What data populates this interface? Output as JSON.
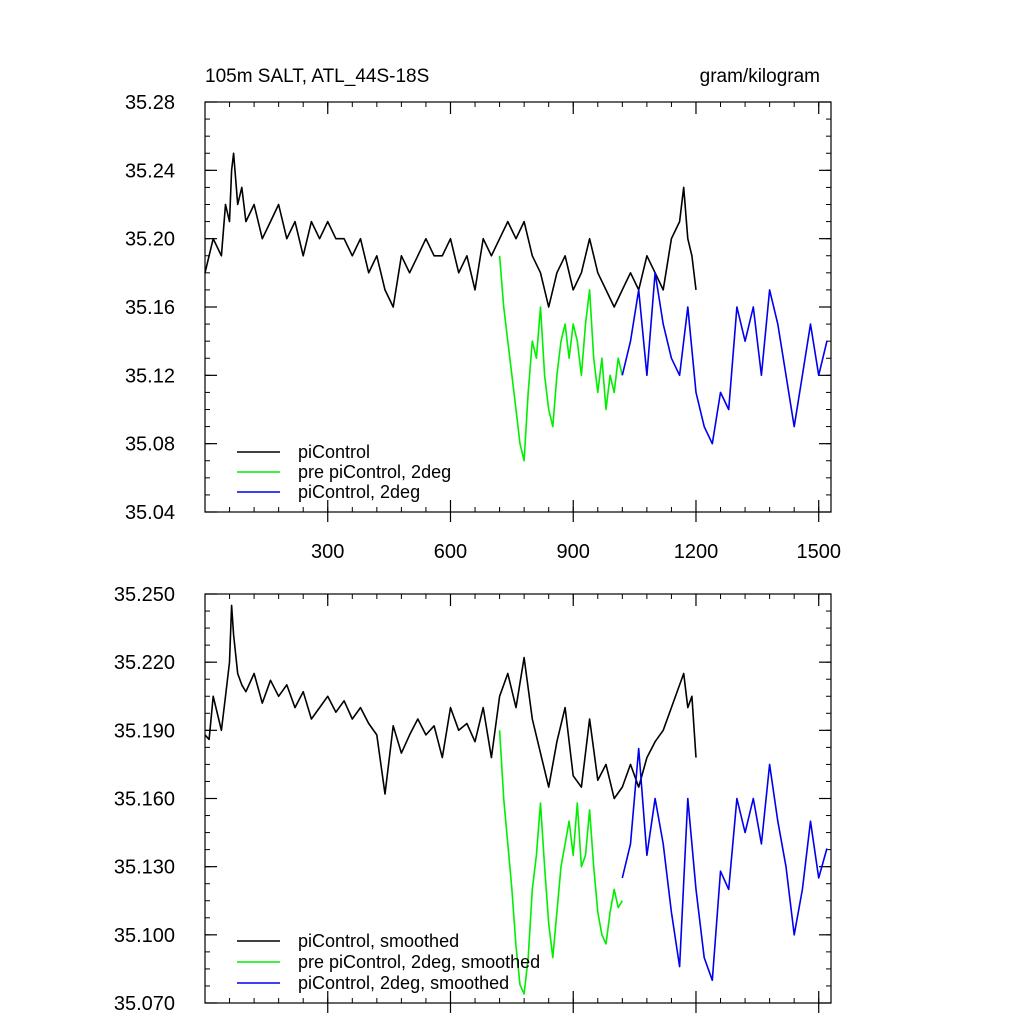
{
  "chart_data": [
    {
      "type": "line",
      "title_left": "105m SALT, ATL_44S-18S",
      "title_right": "gram/kilogram",
      "xlim": [
        0,
        1530
      ],
      "ylim": [
        35.04,
        35.28
      ],
      "xticks": [
        300,
        600,
        900,
        1200,
        1500
      ],
      "xtick_labels": [
        "300",
        "600",
        "900",
        "1200",
        "1500"
      ],
      "yticks": [
        35.04,
        35.08,
        35.12,
        35.16,
        35.2,
        35.24,
        35.28
      ],
      "ytick_labels": [
        "35.04",
        "35.08",
        "35.12",
        "35.16",
        "35.20",
        "35.24",
        "35.28"
      ],
      "legend_position": "bottom-left",
      "series": [
        {
          "name": "piControl",
          "color": "#000000",
          "x": [
            0,
            20,
            40,
            50,
            60,
            65,
            70,
            80,
            90,
            100,
            120,
            140,
            160,
            180,
            200,
            220,
            240,
            260,
            280,
            300,
            320,
            340,
            360,
            380,
            400,
            420,
            440,
            460,
            480,
            500,
            520,
            540,
            560,
            580,
            600,
            620,
            640,
            660,
            680,
            700,
            720,
            740,
            760,
            780,
            800,
            820,
            840,
            860,
            880,
            900,
            920,
            940,
            960,
            980,
            1000,
            1020,
            1040,
            1060,
            1080,
            1100,
            1120,
            1140,
            1160,
            1170,
            1180,
            1190,
            1200
          ],
          "y": [
            35.18,
            35.2,
            35.19,
            35.22,
            35.21,
            35.24,
            35.25,
            35.22,
            35.23,
            35.21,
            35.22,
            35.2,
            35.21,
            35.22,
            35.2,
            35.21,
            35.19,
            35.21,
            35.2,
            35.21,
            35.2,
            35.2,
            35.19,
            35.2,
            35.18,
            35.19,
            35.17,
            35.16,
            35.19,
            35.18,
            35.19,
            35.2,
            35.19,
            35.19,
            35.2,
            35.18,
            35.19,
            35.17,
            35.2,
            35.19,
            35.2,
            35.21,
            35.2,
            35.21,
            35.19,
            35.18,
            35.16,
            35.18,
            35.19,
            35.17,
            35.18,
            35.2,
            35.18,
            35.17,
            35.16,
            35.17,
            35.18,
            35.17,
            35.19,
            35.18,
            35.17,
            35.2,
            35.21,
            35.23,
            35.2,
            35.19,
            35.17
          ]
        },
        {
          "name": "pre piControl, 2deg",
          "color": "#00ee00",
          "x": [
            720,
            730,
            740,
            750,
            760,
            770,
            780,
            790,
            800,
            810,
            820,
            830,
            840,
            850,
            860,
            870,
            880,
            890,
            900,
            910,
            920,
            930,
            940,
            950,
            960,
            970,
            980,
            990,
            1000,
            1010,
            1020
          ],
          "y": [
            35.19,
            35.16,
            35.14,
            35.12,
            35.1,
            35.08,
            35.07,
            35.11,
            35.14,
            35.13,
            35.16,
            35.12,
            35.1,
            35.09,
            35.12,
            35.14,
            35.15,
            35.13,
            35.15,
            35.14,
            35.12,
            35.15,
            35.17,
            35.13,
            35.11,
            35.13,
            35.1,
            35.12,
            35.11,
            35.13,
            35.12
          ]
        },
        {
          "name": "piControl, 2deg",
          "color": "#0000ee",
          "x": [
            1020,
            1040,
            1060,
            1080,
            1100,
            1120,
            1140,
            1160,
            1180,
            1200,
            1220,
            1240,
            1260,
            1280,
            1300,
            1320,
            1340,
            1360,
            1380,
            1400,
            1420,
            1440,
            1460,
            1480,
            1500,
            1520
          ],
          "y": [
            35.12,
            35.14,
            35.17,
            35.12,
            35.18,
            35.15,
            35.13,
            35.12,
            35.16,
            35.11,
            35.09,
            35.08,
            35.11,
            35.1,
            35.16,
            35.14,
            35.16,
            35.12,
            35.17,
            35.15,
            35.12,
            35.09,
            35.12,
            35.15,
            35.12,
            35.14
          ]
        }
      ]
    },
    {
      "type": "line",
      "xlim": [
        0,
        1530
      ],
      "ylim": [
        35.07,
        35.25
      ],
      "xticks": [
        300,
        600,
        900,
        1200,
        1500
      ],
      "yticks": [
        35.07,
        35.1,
        35.13,
        35.16,
        35.19,
        35.22,
        35.25
      ],
      "ytick_labels": [
        "35.070",
        "35.100",
        "35.130",
        "35.160",
        "35.190",
        "35.220",
        "35.250"
      ],
      "legend_position": "bottom-left",
      "series": [
        {
          "name": "piControl, smoothed",
          "color": "#000000",
          "x": [
            0,
            10,
            20,
            40,
            50,
            60,
            65,
            70,
            80,
            90,
            100,
            120,
            140,
            160,
            180,
            200,
            220,
            240,
            260,
            280,
            300,
            320,
            340,
            360,
            380,
            400,
            420,
            440,
            460,
            480,
            500,
            520,
            540,
            560,
            580,
            600,
            620,
            640,
            660,
            680,
            700,
            720,
            740,
            760,
            780,
            800,
            820,
            840,
            860,
            880,
            900,
            920,
            940,
            960,
            980,
            1000,
            1020,
            1040,
            1060,
            1080,
            1100,
            1120,
            1140,
            1160,
            1170,
            1180,
            1190,
            1200
          ],
          "y": [
            35.188,
            35.186,
            35.205,
            35.19,
            35.205,
            35.22,
            35.245,
            35.232,
            35.215,
            35.21,
            35.207,
            35.215,
            35.202,
            35.212,
            35.205,
            35.21,
            35.2,
            35.207,
            35.195,
            35.2,
            35.205,
            35.198,
            35.203,
            35.195,
            35.2,
            35.193,
            35.188,
            35.162,
            35.192,
            35.18,
            35.188,
            35.195,
            35.188,
            35.192,
            35.178,
            35.2,
            35.19,
            35.193,
            35.185,
            35.2,
            35.178,
            35.205,
            35.215,
            35.2,
            35.222,
            35.195,
            35.18,
            35.165,
            35.185,
            35.2,
            35.17,
            35.165,
            35.195,
            35.168,
            35.175,
            35.16,
            35.165,
            35.175,
            35.165,
            35.178,
            35.185,
            35.19,
            35.2,
            35.21,
            35.215,
            35.2,
            35.205,
            35.178
          ]
        },
        {
          "name": "pre piControl, 2deg, smoothed",
          "color": "#00ee00",
          "x": [
            720,
            730,
            740,
            750,
            760,
            770,
            780,
            790,
            800,
            810,
            820,
            830,
            840,
            850,
            860,
            870,
            880,
            890,
            900,
            910,
            920,
            930,
            940,
            950,
            960,
            970,
            980,
            990,
            1000,
            1010,
            1020
          ],
          "y": [
            35.19,
            35.16,
            35.14,
            35.12,
            35.095,
            35.078,
            35.074,
            35.09,
            35.12,
            35.135,
            35.158,
            35.13,
            35.105,
            35.09,
            35.11,
            35.13,
            35.14,
            35.15,
            35.135,
            35.158,
            35.13,
            35.135,
            35.155,
            35.13,
            35.11,
            35.1,
            35.096,
            35.11,
            35.12,
            35.112,
            35.115
          ]
        },
        {
          "name": "piControl, 2deg, smoothed",
          "color": "#0000ee",
          "x": [
            1020,
            1040,
            1060,
            1080,
            1100,
            1120,
            1140,
            1160,
            1180,
            1200,
            1220,
            1240,
            1260,
            1280,
            1300,
            1320,
            1340,
            1360,
            1380,
            1400,
            1420,
            1440,
            1460,
            1480,
            1500,
            1520
          ],
          "y": [
            35.125,
            35.14,
            35.182,
            35.135,
            35.16,
            35.14,
            35.11,
            35.086,
            35.16,
            35.12,
            35.09,
            35.08,
            35.128,
            35.12,
            35.16,
            35.145,
            35.16,
            35.14,
            35.175,
            35.15,
            35.13,
            35.1,
            35.12,
            35.15,
            35.125,
            35.138
          ]
        }
      ]
    }
  ]
}
